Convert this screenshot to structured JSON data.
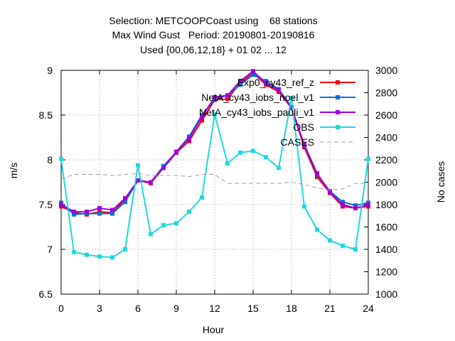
{
  "title_lines": [
    "Selection: METCOOPCoast using    68 stations",
    "Max Wind Gust   Period: 20190801-20190816",
    "Used {00,06,12,18} + 01 02 ... 12"
  ],
  "colors": {
    "Exp0_cy43_ref_z": "#e8001a",
    "NetA_cy43_iobs_noel_v1": "#0072d6",
    "NetA_cy43_iobs_pauli_v1": "#a000e0",
    "OBS": "#20d8e0",
    "CASES": "#a0a0a0"
  },
  "chart_data": {
    "type": "line",
    "xlabel": "Hour",
    "ylabel": "m/s",
    "y2label": "No cases",
    "xlim": [
      0,
      24
    ],
    "ylim": [
      6.5,
      9
    ],
    "y2lim": [
      1000,
      3000
    ],
    "xticks": [
      0,
      3,
      6,
      9,
      12,
      15,
      18,
      21,
      24
    ],
    "yticks": [
      6.5,
      7,
      7.5,
      8,
      8.5,
      9
    ],
    "y2ticks": [
      1000,
      1200,
      1400,
      1600,
      1800,
      2000,
      2200,
      2400,
      2600,
      2800,
      3000
    ],
    "legend_position": "top-right",
    "x": [
      0,
      1,
      2,
      3,
      4,
      5,
      6,
      7,
      8,
      9,
      10,
      11,
      12,
      13,
      14,
      15,
      16,
      17,
      18,
      19,
      20,
      21,
      22,
      23,
      24
    ],
    "series": [
      {
        "name": "Exp0_cy43_ref_z",
        "axis": "y",
        "values": [
          7.48,
          7.41,
          7.39,
          7.42,
          7.41,
          7.56,
          7.77,
          7.74,
          7.91,
          8.08,
          8.21,
          8.44,
          8.67,
          8.68,
          8.86,
          8.97,
          8.84,
          8.76,
          8.58,
          8.14,
          7.81,
          7.63,
          7.48,
          7.46,
          7.48
        ]
      },
      {
        "name": "NetA_cy43_iobs_noel_v1",
        "axis": "y",
        "values": [
          7.52,
          7.39,
          7.4,
          7.4,
          7.4,
          7.53,
          7.77,
          7.75,
          7.93,
          8.09,
          8.26,
          8.5,
          8.68,
          8.72,
          8.84,
          8.95,
          8.88,
          8.79,
          8.59,
          8.16,
          7.84,
          7.65,
          7.53,
          7.49,
          7.52
        ]
      },
      {
        "name": "NetA_cy43_iobs_pauli_v1",
        "axis": "y",
        "values": [
          7.5,
          7.42,
          7.42,
          7.46,
          7.44,
          7.57,
          7.77,
          7.75,
          7.91,
          8.09,
          8.24,
          8.48,
          8.7,
          8.72,
          8.88,
          8.99,
          8.86,
          8.78,
          8.58,
          8.17,
          7.85,
          7.64,
          7.5,
          7.46,
          7.5
        ]
      },
      {
        "name": "OBS",
        "axis": "y",
        "values": [
          8.01,
          6.97,
          6.94,
          6.92,
          6.91,
          7.0,
          7.94,
          7.17,
          7.27,
          7.29,
          7.42,
          7.58,
          8.51,
          7.96,
          8.08,
          8.1,
          8.03,
          7.91,
          8.69,
          7.48,
          7.22,
          7.1,
          7.04,
          7.0,
          8.01
        ]
      },
      {
        "name": "CASES",
        "axis": "y2",
        "values": [
          2030,
          2070,
          2070,
          2070,
          2060,
          2070,
          2080,
          2060,
          2060,
          2060,
          2050,
          2070,
          2070,
          1990,
          1990,
          1990,
          1990,
          1990,
          2000,
          1980,
          1950,
          1930,
          1940,
          1990,
          1990
        ]
      }
    ]
  }
}
